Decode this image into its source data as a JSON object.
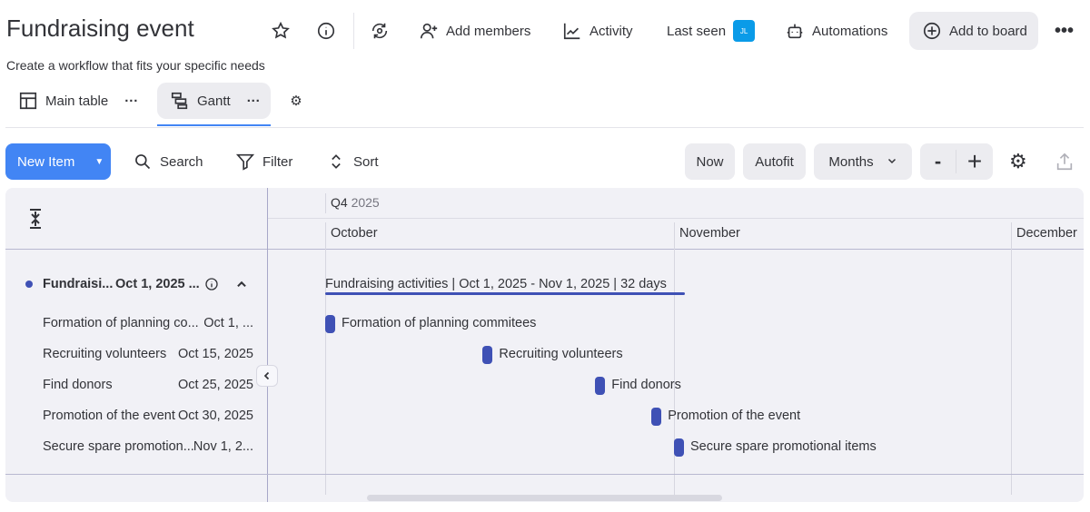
{
  "header": {
    "title": "Fundraising event",
    "subtitle": "Create a workflow that fits your specific needs",
    "add_members": "Add members",
    "activity": "Activity",
    "last_seen": "Last seen",
    "avatar_initials": "JL",
    "avatar_color": "#0a9be8",
    "automations": "Automations",
    "add_to_board": "Add to board"
  },
  "views": [
    {
      "label": "Main table"
    },
    {
      "label": "Gantt"
    }
  ],
  "toolbar": {
    "new_item": "New Item",
    "search": "Search",
    "filter": "Filter",
    "sort": "Sort",
    "now": "Now",
    "autofit": "Autofit",
    "zoom_level": "Months",
    "minus": "-",
    "plus": "+"
  },
  "timeline": {
    "quarter": "Q4",
    "year": "2025",
    "months": [
      "October",
      "November",
      "December"
    ]
  },
  "group": {
    "name": "Fundraisi...",
    "date": "Oct 1, 2025 ...",
    "bar_label": "Fundraising activities | Oct 1, 2025 - Nov 1, 2025 | 32 days",
    "start": "2025-10-01",
    "end": "2025-11-01",
    "color": "#3f51b5"
  },
  "tasks": [
    {
      "name": "Formation of planning co...",
      "date": "Oct 1, ...",
      "bar_label": "Formation of planning commitees",
      "start": "2025-10-01"
    },
    {
      "name": "Recruiting volunteers",
      "date": "Oct 15, 2025",
      "bar_label": "Recruiting volunteers",
      "start": "2025-10-15"
    },
    {
      "name": "Find donors",
      "date": "Oct 25, 2025",
      "bar_label": "Find donors",
      "start": "2025-10-25"
    },
    {
      "name": "Promotion of the event",
      "date": "Oct 30, 2025",
      "bar_label": "Promotion of the event",
      "start": "2025-10-30"
    },
    {
      "name": "Secure spare promotion...",
      "date": "Nov 1, 2...",
      "bar_label": "Secure spare promotional items",
      "start": "2025-11-01"
    }
  ],
  "accent": "#4285f4"
}
